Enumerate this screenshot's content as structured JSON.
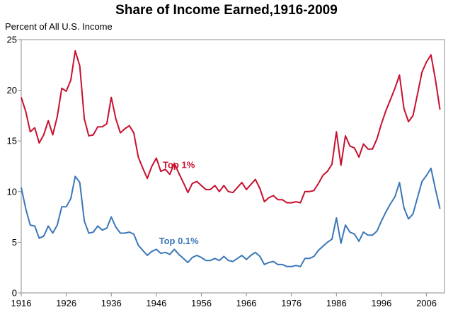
{
  "chart_data": {
    "type": "line",
    "title": "Share of Income Earned,1916-2009",
    "ylabel": "Percent of All U.S. Income",
    "xlabel": "",
    "xlim": [
      1916,
      2010
    ],
    "ylim": [
      0,
      25
    ],
    "yticks": [
      0,
      5,
      10,
      15,
      20,
      25
    ],
    "xtick_labels": [
      "1916",
      "1926",
      "1936",
      "1946",
      "1956",
      "1966",
      "1976",
      "1986",
      "1996",
      "2006"
    ],
    "xtick_values": [
      1916,
      1926,
      1936,
      1946,
      1956,
      1966,
      1976,
      1986,
      1996,
      2006
    ],
    "grid": false,
    "series": [
      {
        "name": "Top 1%",
        "color": "#c8102e",
        "label_at": [
          1951,
          12.6
        ],
        "points": [
          [
            1916,
            19.3
          ],
          [
            1917,
            17.9
          ],
          [
            1918,
            15.9
          ],
          [
            1919,
            16.3
          ],
          [
            1920,
            14.8
          ],
          [
            1921,
            15.6
          ],
          [
            1922,
            17.0
          ],
          [
            1923,
            15.6
          ],
          [
            1924,
            17.4
          ],
          [
            1925,
            20.2
          ],
          [
            1926,
            19.9
          ],
          [
            1927,
            21.0
          ],
          [
            1928,
            23.9
          ],
          [
            1929,
            22.4
          ],
          [
            1930,
            17.2
          ],
          [
            1931,
            15.5
          ],
          [
            1932,
            15.6
          ],
          [
            1933,
            16.4
          ],
          [
            1934,
            16.4
          ],
          [
            1935,
            16.7
          ],
          [
            1936,
            19.3
          ],
          [
            1937,
            17.2
          ],
          [
            1938,
            15.8
          ],
          [
            1939,
            16.2
          ],
          [
            1940,
            16.5
          ],
          [
            1941,
            15.8
          ],
          [
            1942,
            13.4
          ],
          [
            1943,
            12.3
          ],
          [
            1944,
            11.3
          ],
          [
            1945,
            12.5
          ],
          [
            1946,
            13.3
          ],
          [
            1947,
            12.0
          ],
          [
            1948,
            12.2
          ],
          [
            1949,
            11.7
          ],
          [
            1950,
            12.8
          ],
          [
            1951,
            11.8
          ],
          [
            1952,
            10.9
          ],
          [
            1953,
            9.9
          ],
          [
            1954,
            10.8
          ],
          [
            1955,
            11.0
          ],
          [
            1956,
            10.6
          ],
          [
            1957,
            10.2
          ],
          [
            1958,
            10.2
          ],
          [
            1959,
            10.6
          ],
          [
            1960,
            10.0
          ],
          [
            1961,
            10.6
          ],
          [
            1962,
            10.0
          ],
          [
            1963,
            9.9
          ],
          [
            1964,
            10.4
          ],
          [
            1965,
            10.9
          ],
          [
            1966,
            10.2
          ],
          [
            1967,
            10.7
          ],
          [
            1968,
            11.2
          ],
          [
            1969,
            10.3
          ],
          [
            1970,
            9.0
          ],
          [
            1971,
            9.4
          ],
          [
            1972,
            9.6
          ],
          [
            1973,
            9.2
          ],
          [
            1974,
            9.2
          ],
          [
            1975,
            8.9
          ],
          [
            1976,
            8.9
          ],
          [
            1977,
            9.0
          ],
          [
            1978,
            8.9
          ],
          [
            1979,
            10.0
          ],
          [
            1980,
            10.0
          ],
          [
            1981,
            10.1
          ],
          [
            1982,
            10.8
          ],
          [
            1983,
            11.6
          ],
          [
            1984,
            12.0
          ],
          [
            1985,
            12.7
          ],
          [
            1986,
            15.9
          ],
          [
            1987,
            12.6
          ],
          [
            1988,
            15.5
          ],
          [
            1989,
            14.5
          ],
          [
            1990,
            14.3
          ],
          [
            1991,
            13.4
          ],
          [
            1992,
            14.7
          ],
          [
            1993,
            14.2
          ],
          [
            1994,
            14.2
          ],
          [
            1995,
            15.2
          ],
          [
            1996,
            16.7
          ],
          [
            1997,
            18.0
          ],
          [
            1998,
            19.1
          ],
          [
            1999,
            20.2
          ],
          [
            2000,
            21.5
          ],
          [
            2001,
            18.2
          ],
          [
            2002,
            16.9
          ],
          [
            2003,
            17.5
          ],
          [
            2004,
            19.6
          ],
          [
            2005,
            21.8
          ],
          [
            2006,
            22.8
          ],
          [
            2007,
            23.5
          ],
          [
            2008,
            21.0
          ],
          [
            2009,
            18.1
          ]
        ]
      },
      {
        "name": "Top 0.1%",
        "color": "#3a76b8",
        "label_at": [
          1951,
          5.1
        ],
        "points": [
          [
            1916,
            10.4
          ],
          [
            1917,
            8.3
          ],
          [
            1918,
            6.7
          ],
          [
            1919,
            6.6
          ],
          [
            1920,
            5.4
          ],
          [
            1921,
            5.6
          ],
          [
            1922,
            6.6
          ],
          [
            1923,
            5.9
          ],
          [
            1924,
            6.7
          ],
          [
            1925,
            8.5
          ],
          [
            1926,
            8.5
          ],
          [
            1927,
            9.3
          ],
          [
            1928,
            11.5
          ],
          [
            1929,
            10.9
          ],
          [
            1930,
            7.1
          ],
          [
            1931,
            5.9
          ],
          [
            1932,
            6.0
          ],
          [
            1933,
            6.6
          ],
          [
            1934,
            6.2
          ],
          [
            1935,
            6.4
          ],
          [
            1936,
            7.5
          ],
          [
            1937,
            6.5
          ],
          [
            1938,
            5.9
          ],
          [
            1939,
            5.9
          ],
          [
            1940,
            6.0
          ],
          [
            1941,
            5.8
          ],
          [
            1942,
            4.7
          ],
          [
            1943,
            4.2
          ],
          [
            1944,
            3.7
          ],
          [
            1945,
            4.1
          ],
          [
            1946,
            4.3
          ],
          [
            1947,
            3.9
          ],
          [
            1948,
            4.0
          ],
          [
            1949,
            3.8
          ],
          [
            1950,
            4.3
          ],
          [
            1951,
            3.8
          ],
          [
            1952,
            3.4
          ],
          [
            1953,
            3.0
          ],
          [
            1954,
            3.5
          ],
          [
            1955,
            3.7
          ],
          [
            1956,
            3.5
          ],
          [
            1957,
            3.2
          ],
          [
            1958,
            3.2
          ],
          [
            1959,
            3.4
          ],
          [
            1960,
            3.2
          ],
          [
            1961,
            3.6
          ],
          [
            1962,
            3.2
          ],
          [
            1963,
            3.1
          ],
          [
            1964,
            3.4
          ],
          [
            1965,
            3.7
          ],
          [
            1966,
            3.3
          ],
          [
            1967,
            3.7
          ],
          [
            1968,
            4.0
          ],
          [
            1969,
            3.6
          ],
          [
            1970,
            2.8
          ],
          [
            1971,
            3.0
          ],
          [
            1972,
            3.1
          ],
          [
            1973,
            2.8
          ],
          [
            1974,
            2.8
          ],
          [
            1975,
            2.6
          ],
          [
            1976,
            2.6
          ],
          [
            1977,
            2.7
          ],
          [
            1978,
            2.6
          ],
          [
            1979,
            3.4
          ],
          [
            1980,
            3.4
          ],
          [
            1981,
            3.6
          ],
          [
            1982,
            4.2
          ],
          [
            1983,
            4.6
          ],
          [
            1984,
            5.0
          ],
          [
            1985,
            5.3
          ],
          [
            1986,
            7.4
          ],
          [
            1987,
            4.9
          ],
          [
            1988,
            6.7
          ],
          [
            1989,
            6.0
          ],
          [
            1990,
            5.8
          ],
          [
            1991,
            5.1
          ],
          [
            1992,
            6.0
          ],
          [
            1993,
            5.7
          ],
          [
            1994,
            5.7
          ],
          [
            1995,
            6.1
          ],
          [
            1996,
            7.1
          ],
          [
            1997,
            8.0
          ],
          [
            1998,
            8.8
          ],
          [
            1999,
            9.5
          ],
          [
            2000,
            10.9
          ],
          [
            2001,
            8.4
          ],
          [
            2002,
            7.3
          ],
          [
            2003,
            7.8
          ],
          [
            2004,
            9.4
          ],
          [
            2005,
            11.0
          ],
          [
            2006,
            11.6
          ],
          [
            2007,
            12.3
          ],
          [
            2008,
            10.2
          ],
          [
            2009,
            8.3
          ]
        ]
      }
    ]
  }
}
